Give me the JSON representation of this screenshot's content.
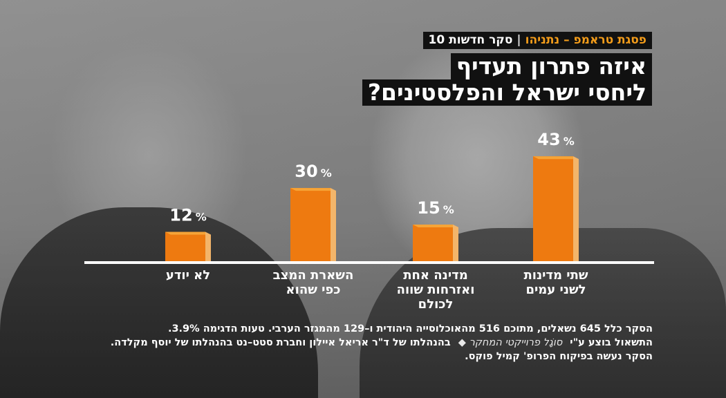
{
  "header": {
    "kicker_highlight": "פסגת טראמפ – נתניהו",
    "kicker_separator": "|",
    "kicker_text": "סקר חדשות 10",
    "title_lines": [
      "איזה פתרון תעדיף",
      "ליחסי ישראל והפלסטינים?"
    ]
  },
  "chart_data": {
    "type": "bar",
    "categories": [
      [
        "לא יודע"
      ],
      [
        "השארת המצב",
        "כפי שהוא"
      ],
      [
        "מדינה אחת",
        "ואזרחות שווה",
        "לכולם"
      ],
      [
        "שתי מדינות",
        "לשני עמים"
      ]
    ],
    "values": [
      12,
      30,
      15,
      43
    ],
    "value_labels": [
      "12",
      "30",
      "15",
      "43"
    ],
    "unit": "%",
    "colors": {
      "bar_front": "#ee7a10",
      "bar_top": "#f6a437",
      "bar_side": "#f3b56a",
      "baseline": "#ffffff"
    }
  },
  "footer": {
    "line1": "הסקר כלל 645 נשאלים, מתוכם 516 מהאוכלוסייה היהודית ו–129 מהמגזר הערבי. טעות הדגימה 3.9%.",
    "line2_start": "התשאול בוצע ע\"י",
    "logo_text": "סוֹגָל פרוייקטי המחקר",
    "line2_end": "בהנהלתו של ד\"ר אריאל איילון וחברת סטט–נט בהנהלתו של יוסף מקלדה.",
    "line3": "הסקר נעשה בפיקוח הפרופ' קמיל פוקס."
  }
}
